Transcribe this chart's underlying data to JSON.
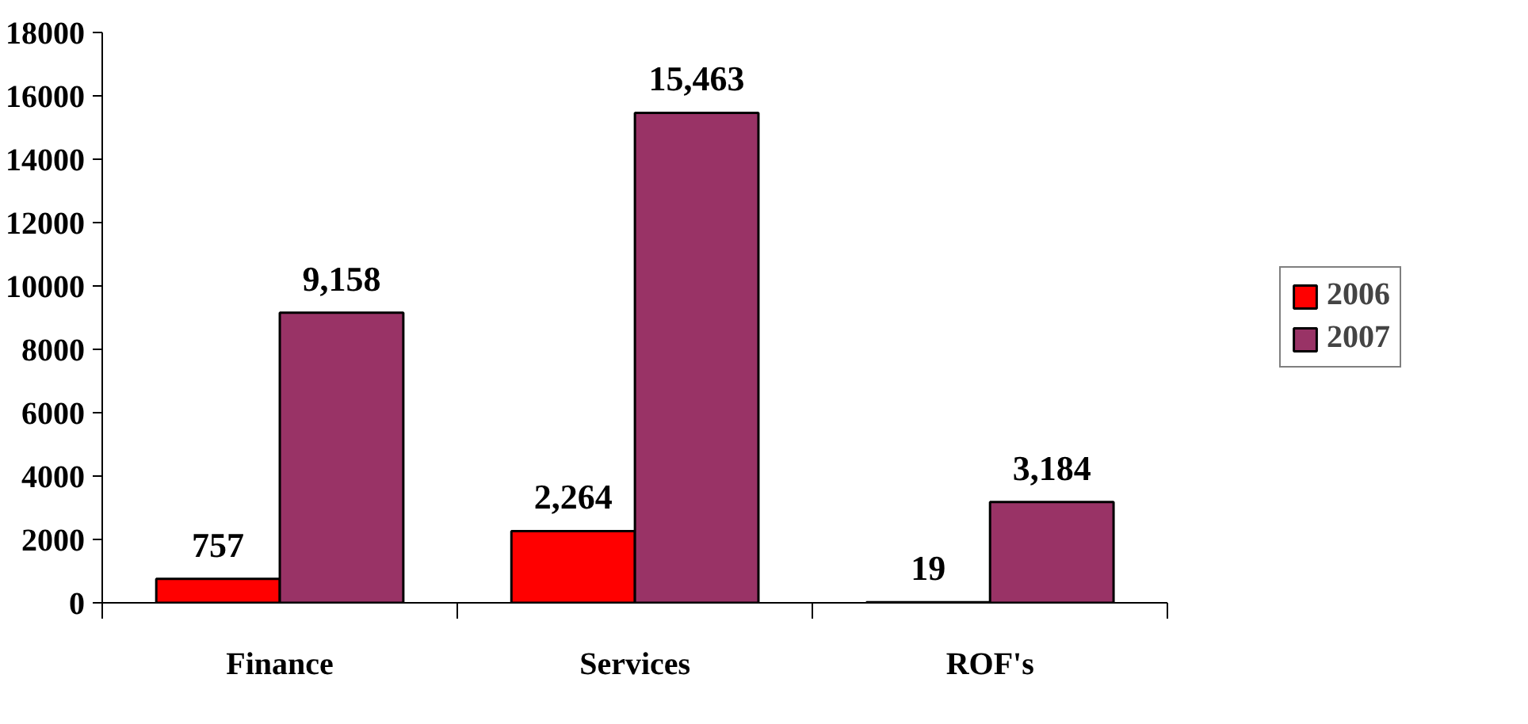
{
  "chart_data": {
    "type": "bar",
    "categories": [
      "Finance",
      "Services",
      "ROF's"
    ],
    "series": [
      {
        "name": "2006",
        "color": "#ff0000",
        "values": [
          757,
          2264,
          19
        ],
        "value_labels": [
          "757",
          "2,264",
          "19"
        ]
      },
      {
        "name": "2007",
        "color": "#993366",
        "values": [
          9158,
          15463,
          3184
        ],
        "value_labels": [
          "9,158",
          "15,463",
          "3,184"
        ]
      }
    ],
    "ylim": [
      0,
      18000
    ],
    "yticks": [
      0,
      2000,
      4000,
      6000,
      8000,
      10000,
      12000,
      14000,
      16000,
      18000
    ],
    "grid": false,
    "legend": "right"
  }
}
